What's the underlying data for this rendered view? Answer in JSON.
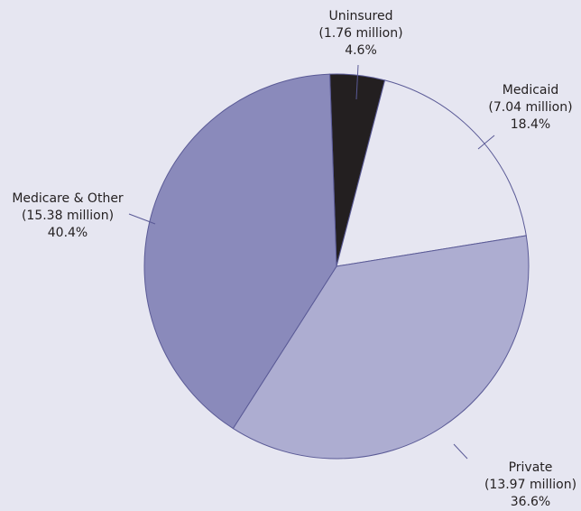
{
  "chart_data": {
    "type": "pie",
    "categories": [
      "Uninsured",
      "Medicaid",
      "Private",
      "Medicare & Other"
    ],
    "values": [
      4.6,
      18.4,
      36.6,
      40.4
    ],
    "value_labels": [
      "4.6%",
      "18.4%",
      "36.6%",
      "40.4%"
    ],
    "count_labels": [
      "(1.76 million)",
      "(7.04 million)",
      "(13.97 million)",
      "(15.38 million)"
    ],
    "colors": [
      "#231f20",
      "#e6e6f1",
      "#adadd1",
      "#8a8abb"
    ]
  }
}
